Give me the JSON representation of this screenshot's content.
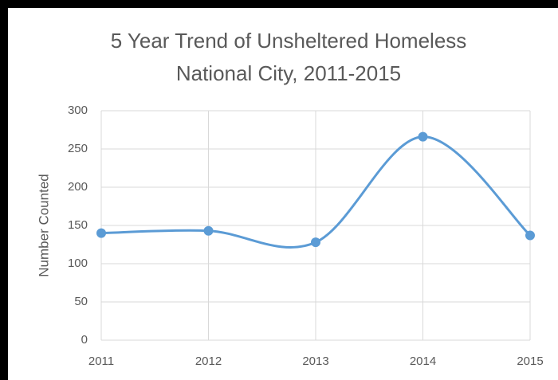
{
  "chart_data": {
    "type": "line",
    "title": [
      "5 Year Trend of Unsheltered Homeless",
      "National City, 2011-2015"
    ],
    "y_label": "Number Counted",
    "categories": [
      "2011",
      "2012",
      "2013",
      "2014",
      "2015"
    ],
    "series": [
      {
        "name": "Number Counted",
        "color": "#5b9bd5",
        "values": [
          140,
          143,
          128,
          266,
          137
        ]
      }
    ],
    "ylim": [
      0,
      300
    ],
    "yticks": [
      0,
      50,
      100,
      150,
      200,
      250,
      300
    ],
    "grid": true,
    "smooth": true
  }
}
